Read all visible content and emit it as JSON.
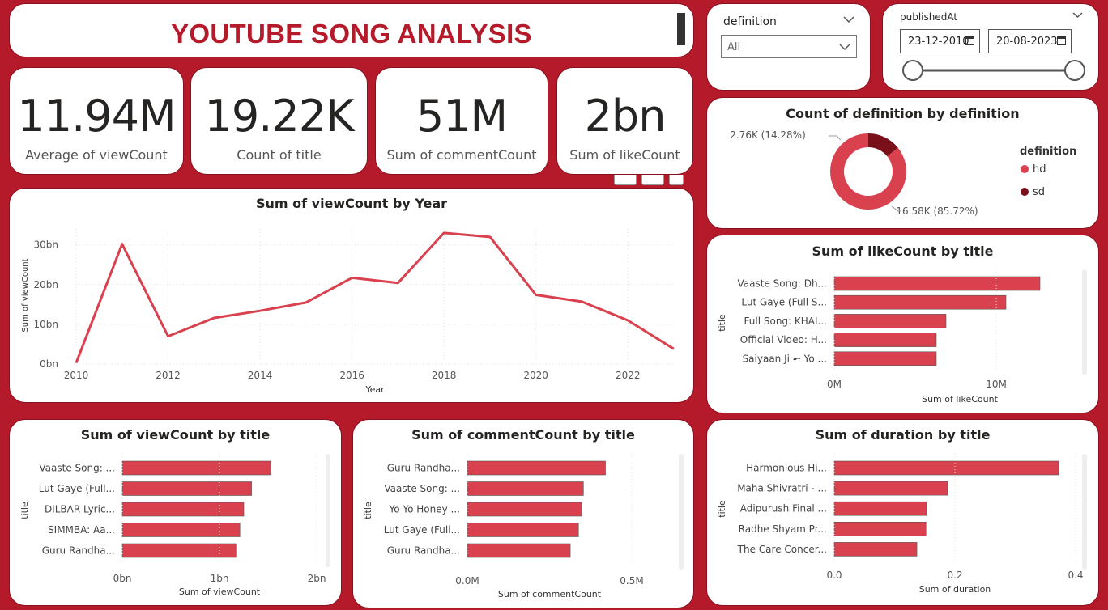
{
  "header": {
    "title": "YOUTUBE SONG ANALYSIS"
  },
  "kpis": [
    {
      "value": "11.94M",
      "label": "Average of viewCount"
    },
    {
      "value": "19.22K",
      "label": "Count of title"
    },
    {
      "value": "51M",
      "label": "Sum of commentCount"
    },
    {
      "value": "2bn",
      "label": "Sum of likeCount"
    }
  ],
  "slicers": {
    "definition": {
      "label": "definition",
      "value": "All"
    },
    "published": {
      "label": "publishedAt",
      "start": "23-12-2010",
      "end": "20-08-2023"
    }
  },
  "colors": {
    "accent": "#d9414e",
    "dark": "#7a1019",
    "background": "#b51a2a"
  },
  "chart_data": [
    {
      "id": "donut",
      "type": "pie",
      "title": "Count of definition by definition",
      "legend_title": "definition",
      "legend_position": "right",
      "categories": [
        "hd",
        "sd"
      ],
      "values": [
        16.58,
        2.76
      ],
      "unit": "K",
      "data_labels": [
        "16.58K (85.72%)",
        "2.76K (14.28%)"
      ],
      "colors": [
        "#d9414e",
        "#7a1019"
      ]
    },
    {
      "id": "line",
      "type": "line",
      "title": "Sum of viewCount by Year",
      "xlabel": "Year",
      "ylabel": "Sum of viewCount",
      "x": [
        2010,
        2011,
        2012,
        2013,
        2014,
        2015,
        2016,
        2017,
        2018,
        2019,
        2020,
        2021,
        2022,
        2023
      ],
      "values": [
        0.3,
        30.2,
        7.0,
        11.6,
        13.4,
        15.5,
        21.7,
        20.4,
        33.0,
        32.0,
        17.4,
        15.7,
        11.0,
        3.8
      ],
      "xticks": [
        "2010",
        "2012",
        "2014",
        "2016",
        "2018",
        "2020",
        "2022"
      ],
      "yticks": [
        "0bn",
        "10bn",
        "20bn",
        "30bn"
      ],
      "ylim": [
        0,
        34
      ],
      "grid": true
    },
    {
      "id": "like",
      "type": "bar",
      "title": "Sum of likeCount by title",
      "xlabel": "Sum of likeCount",
      "ylabel": "title",
      "categories": [
        "Vaaste Song: Dh...",
        "Lut Gaye (Full S...",
        "Full Song: KHAI...",
        "Official Video: H...",
        "Saiyaan Ji ➸ Yo ..."
      ],
      "values": [
        12.7,
        10.6,
        6.9,
        6.3,
        6.3
      ],
      "unit": "M",
      "xticks": [
        "0M",
        "10M"
      ],
      "xlim": [
        0,
        15.5
      ]
    },
    {
      "id": "view",
      "type": "bar",
      "title": "Sum of viewCount by title",
      "xlabel": "Sum of viewCount",
      "ylabel": "title",
      "categories": [
        "Vaaste Song: ...",
        "Lut Gaye (Full...",
        "DILBAR Lyric...",
        "SIMMBA: Aa...",
        "Guru Randha..."
      ],
      "values": [
        1.53,
        1.33,
        1.25,
        1.21,
        1.17
      ],
      "unit": "bn",
      "xticks": [
        "0bn",
        "1bn",
        "2bn"
      ],
      "xlim": [
        0,
        2.0
      ]
    },
    {
      "id": "comment",
      "type": "bar",
      "title": "Sum of commentCount by title",
      "xlabel": "Sum of commentCount",
      "ylabel": "title",
      "categories": [
        "Guru Randha...",
        "Vaaste Song: ...",
        "Yo Yo Honey ...",
        "Lut Gaye (Full...",
        "Guru Randha..."
      ],
      "values": [
        0.42,
        0.353,
        0.348,
        0.338,
        0.313
      ],
      "unit": "M",
      "xticks": [
        "0.0M",
        "0.5M"
      ],
      "xlim": [
        0,
        0.5
      ]
    },
    {
      "id": "duration",
      "type": "bar",
      "title": "Sum of duration by title",
      "xlabel": "Sum of duration",
      "ylabel": "title",
      "categories": [
        "Harmonious Hi...",
        "Maha Shivratri - ...",
        "Adipurush Final ...",
        "Radhe Shyam Pr...",
        "The Care Concer..."
      ],
      "values": [
        0.372,
        0.188,
        0.153,
        0.152,
        0.137
      ],
      "xticks": [
        "0.0",
        "0.2",
        "0.4"
      ],
      "xlim": [
        0,
        0.4
      ]
    }
  ]
}
